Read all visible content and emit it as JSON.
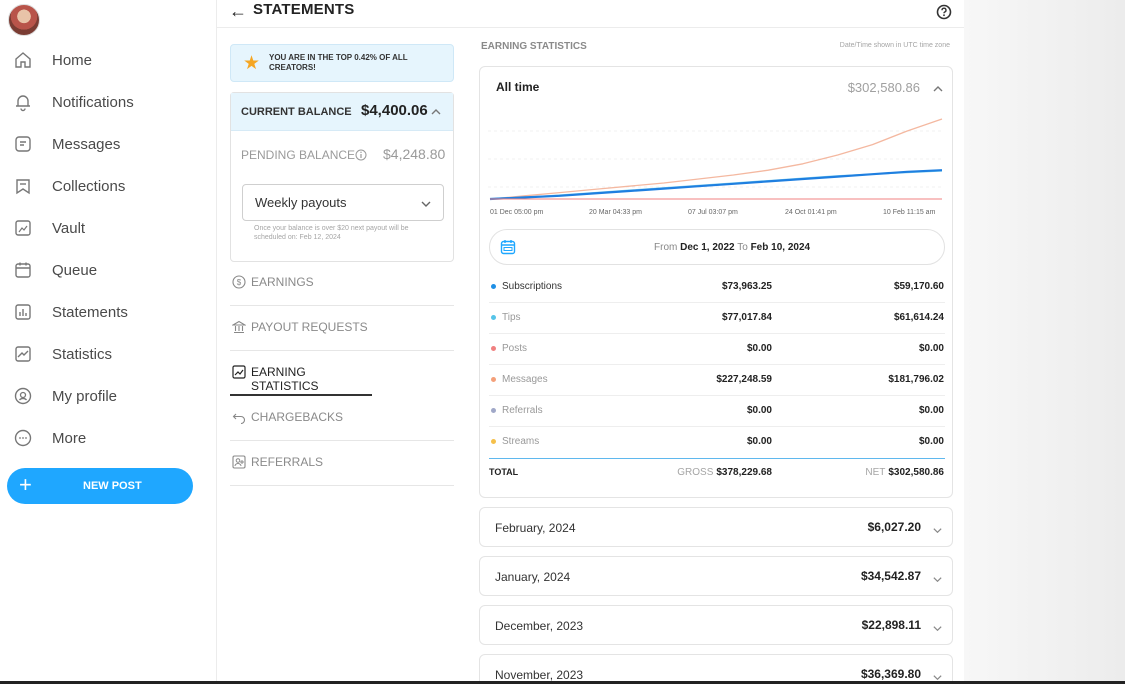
{
  "nav": {
    "items": [
      {
        "label": "Home",
        "icon": "home-icon"
      },
      {
        "label": "Notifications",
        "icon": "bell-icon"
      },
      {
        "label": "Messages",
        "icon": "message-icon"
      },
      {
        "label": "Collections",
        "icon": "collections-icon"
      },
      {
        "label": "Vault",
        "icon": "vault-icon"
      },
      {
        "label": "Queue",
        "icon": "calendar-icon"
      },
      {
        "label": "Statements",
        "icon": "statements-icon"
      },
      {
        "label": "Statistics",
        "icon": "statistics-icon"
      },
      {
        "label": "My profile",
        "icon": "profile-icon"
      },
      {
        "label": "More",
        "icon": "more-icon"
      }
    ],
    "new_post": "NEW POST"
  },
  "header": {
    "title": "STATEMENTS"
  },
  "banner": {
    "text": "YOU ARE IN THE TOP 0.42% OF ALL CREATORS!"
  },
  "balance": {
    "current_label": "CURRENT BALANCE",
    "current_value": "$4,400.06",
    "pending_label": "PENDING BALANCE",
    "pending_value": "$4,248.80",
    "payout_option": "Weekly payouts",
    "note": "Once your balance is over $20 next payout will be scheduled on: Feb 12, 2024"
  },
  "menu": [
    {
      "label": "EARNINGS",
      "icon": "dollar-circle-icon"
    },
    {
      "label": "PAYOUT REQUESTS",
      "icon": "bank-icon"
    },
    {
      "label": "EARNING STATISTICS",
      "icon": "chart-trend-icon"
    },
    {
      "label": "CHARGEBACKS",
      "icon": "undo-icon"
    },
    {
      "label": "REFERRALS",
      "icon": "referral-icon"
    }
  ],
  "stats": {
    "title": "EARNING STATISTICS",
    "tz_note": "Date/Time shown in UTC time zone",
    "period_label": "All time",
    "period_value": "$302,580.86",
    "range_from_label": "From",
    "range_from": "Dec 1, 2022",
    "range_to_label": "To",
    "range_to": "Feb 10, 2024",
    "rows": [
      {
        "name": "Subscriptions",
        "gross": "$73,963.25",
        "net": "$59,170.60",
        "color": "#1f8fe5",
        "dim": false
      },
      {
        "name": "Tips",
        "gross": "$77,017.84",
        "net": "$61,614.24",
        "color": "#56c4e8",
        "dim": true
      },
      {
        "name": "Posts",
        "gross": "$0.00",
        "net": "$0.00",
        "color": "#f08080",
        "dim": true
      },
      {
        "name": "Messages",
        "gross": "$227,248.59",
        "net": "$181,796.02",
        "color": "#f4a07a",
        "dim": true
      },
      {
        "name": "Referrals",
        "gross": "$0.00",
        "net": "$0.00",
        "color": "#a0a8c8",
        "dim": true
      },
      {
        "name": "Streams",
        "gross": "$0.00",
        "net": "$0.00",
        "color": "#f5c04a",
        "dim": true
      }
    ],
    "total": {
      "label": "TOTAL",
      "gross_label": "GROSS",
      "gross": "$378,229.68",
      "net_label": "NET",
      "net": "$302,580.86"
    }
  },
  "chart_data": {
    "type": "line",
    "x_ticks": [
      "01 Dec 05:00 pm",
      "20 Mar 04:33 pm",
      "07 Jul 03:07 pm",
      "24 Oct 01:41 pm",
      "10 Feb 11:15 am"
    ],
    "series": [
      {
        "name": "Messages",
        "color": "#f4b8a0",
        "values": [
          0,
          0.04,
          0.08,
          0.12,
          0.16,
          0.2,
          0.25,
          0.3,
          0.36,
          0.44,
          0.55,
          0.68,
          0.85,
          1.0
        ]
      },
      {
        "name": "Tips",
        "color": "#7fd3ef",
        "values": [
          0,
          0.02,
          0.05,
          0.08,
          0.11,
          0.14,
          0.17,
          0.2,
          0.23,
          0.26,
          0.29,
          0.31,
          0.33,
          0.35
        ]
      },
      {
        "name": "Subscriptions",
        "color": "#1f7fe0",
        "values": [
          0,
          0.02,
          0.04,
          0.07,
          0.1,
          0.13,
          0.16,
          0.19,
          0.22,
          0.25,
          0.28,
          0.31,
          0.34,
          0.36
        ]
      },
      {
        "name": "Posts",
        "color": "#f08080",
        "values": [
          0,
          0,
          0,
          0,
          0,
          0,
          0,
          0,
          0,
          0,
          0,
          0,
          0,
          0
        ]
      }
    ]
  },
  "months": [
    {
      "name": "February, 2024",
      "amount": "$6,027.20"
    },
    {
      "name": "January, 2024",
      "amount": "$34,542.87"
    },
    {
      "name": "December, 2023",
      "amount": "$22,898.11"
    },
    {
      "name": "November, 2023",
      "amount": "$36,369.80"
    }
  ]
}
